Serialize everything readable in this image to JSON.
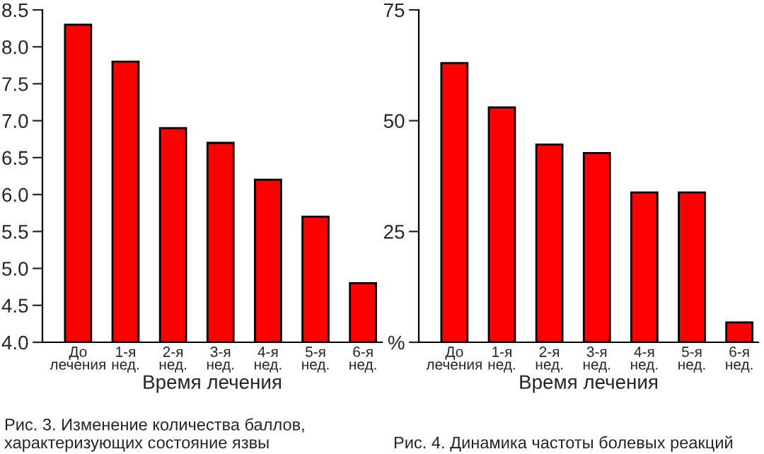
{
  "chart_data": [
    {
      "type": "bar",
      "xlabel": "Время лечения",
      "categories": [
        "До\nлечения",
        "1-я\nнед.",
        "2-я\nнед.",
        "3-я\nнед.",
        "4-я\nнед.",
        "5-я\nнед.",
        "6-я\nнед."
      ],
      "values": [
        8.3,
        7.8,
        6.9,
        6.7,
        6.2,
        5.7,
        4.8
      ],
      "color": "#ff0000",
      "ylim": [
        4.0,
        8.5
      ],
      "yticks": [
        {
          "value": 4.0,
          "label": "4.0"
        },
        {
          "value": 4.5,
          "label": "4.5"
        },
        {
          "value": 5.0,
          "label": "5.0"
        },
        {
          "value": 5.5,
          "label": "5.5"
        },
        {
          "value": 6.0,
          "label": "6.0"
        },
        {
          "value": 6.5,
          "label": "6.5"
        },
        {
          "value": 7.0,
          "label": "7.0"
        },
        {
          "value": 7.5,
          "label": "7.5"
        },
        {
          "value": 8.0,
          "label": "8.0"
        },
        {
          "value": 8.5,
          "label": "8.5"
        }
      ],
      "grid": false,
      "annotations": [
        "Рис. 3. Изменение количества баллов,\nхарактеризующих состояние язвы"
      ]
    },
    {
      "type": "bar",
      "xlabel": "Время лечения",
      "categories": [
        "До\nлечения",
        "1-я\nнед.",
        "2-я\nнед.",
        "3-я\nнед.",
        "4-я\nнед.",
        "5-я\nнед.",
        "6-я\nнед."
      ],
      "values": [
        63,
        53,
        44.6,
        42.7,
        33.8,
        33.8,
        4.5
      ],
      "color": "#ff0000",
      "ylim": [
        0,
        75
      ],
      "yticks": [
        {
          "value": 0,
          "label": "%"
        },
        25,
        50,
        75
      ],
      "grid": false,
      "annotations": [
        "Рис. 4. Динамика частоты болевых реакций"
      ]
    }
  ]
}
